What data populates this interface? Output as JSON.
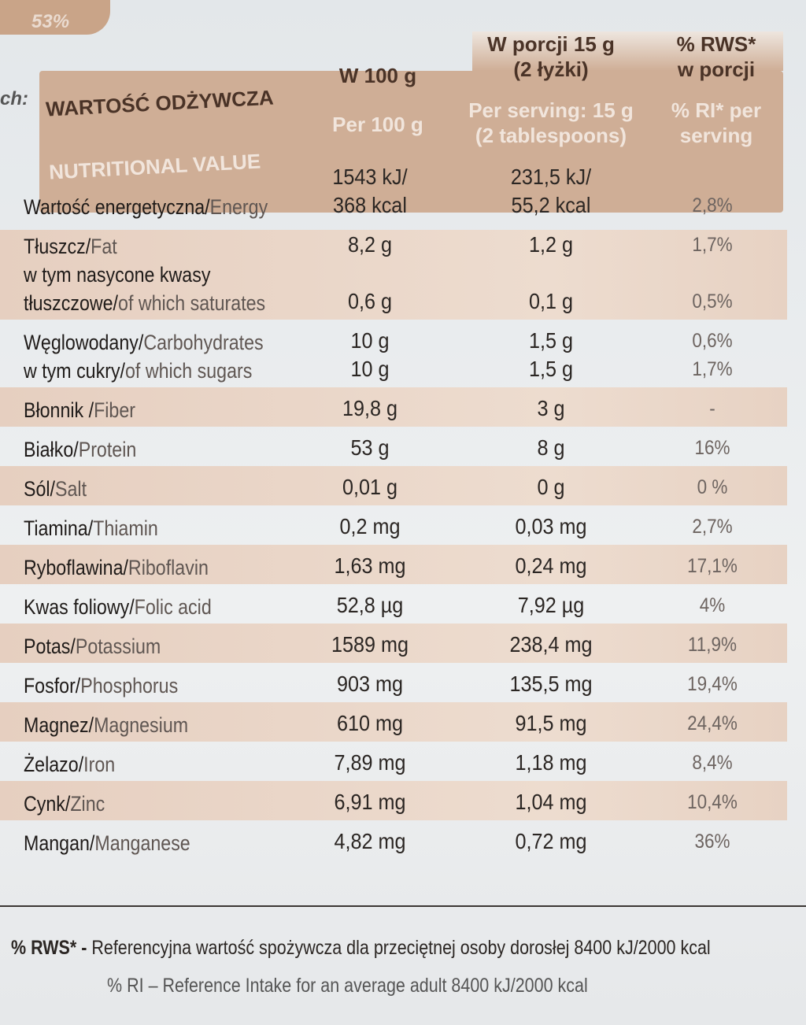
{
  "fragments": {
    "top": "53%",
    "left": "ch:"
  },
  "table": {
    "header": [
      {
        "pl": "WARTOŚĆ ODŻYWCZA",
        "en": "NUTRITIONAL VALUE"
      },
      {
        "pl": "W 100 g",
        "en": "Per 100 g"
      },
      {
        "pl": [
          "W porcji 15 g",
          "(2 łyżki)"
        ],
        "en": [
          "Per serving: 15 g",
          "(2 tablespoons)"
        ]
      },
      {
        "pl": [
          "% RWS*",
          "w porcji"
        ],
        "en": [
          "% RI* per",
          "serving"
        ]
      }
    ],
    "rows": [
      {
        "items": [
          {
            "pl": "Wartość energetyczna/",
            "en": "Energy",
            "per100": [
              "1543 kJ/",
              "368 kcal"
            ],
            "serving": [
              "231,5 kJ/",
              "55,2 kcal"
            ],
            "ri": "2,8%"
          }
        ]
      },
      {
        "items": [
          {
            "pl": "Tłuszcz/",
            "en": "Fat",
            "per100": "8,2 g",
            "serving": "1,2 g",
            "ri": "1,7%"
          },
          {
            "pl": "w tym nasycone kwasy"
          },
          {
            "pl": "tłuszczowe/",
            "en": "of which saturates",
            "per100": "0,6 g",
            "serving": "0,1 g",
            "ri": "0,5%"
          }
        ]
      },
      {
        "items": [
          {
            "pl": "Węglowodany/",
            "en": "Carbohydrates",
            "per100": "10 g",
            "serving": "1,5 g",
            "ri": "0,6%"
          },
          {
            "pl": "w tym cukry/",
            "en": "of which sugars",
            "per100": "10 g",
            "serving": "1,5 g",
            "ri": "1,7%"
          }
        ]
      },
      {
        "items": [
          {
            "pl": "Błonnik /",
            "en": "Fiber",
            "per100": "19,8 g",
            "serving": "3 g",
            "ri": "-"
          }
        ]
      },
      {
        "items": [
          {
            "pl": "Białko/",
            "en": "Protein",
            "per100": "53 g",
            "serving": "8 g",
            "ri": "16%"
          }
        ]
      },
      {
        "items": [
          {
            "pl": "Sól/",
            "en": "Salt",
            "per100": "0,01 g",
            "serving": "0 g",
            "ri": "0 %"
          }
        ]
      },
      {
        "items": [
          {
            "pl": "Tiamina/",
            "en": "Thiamin",
            "per100": "0,2 mg",
            "serving": "0,03 mg",
            "ri": "2,7%"
          }
        ]
      },
      {
        "items": [
          {
            "pl": "Ryboflawina/",
            "en": "Riboflavin",
            "per100": "1,63 mg",
            "serving": "0,24 mg",
            "ri": "17,1%"
          }
        ]
      },
      {
        "items": [
          {
            "pl": "Kwas foliowy/",
            "en": "Folic acid",
            "per100": "52,8 µg",
            "serving": "7,92 µg",
            "ri": "4%"
          }
        ]
      },
      {
        "items": [
          {
            "pl": "Potas/",
            "en": "Potassium",
            "per100": "1589 mg",
            "serving": "238,4 mg",
            "ri": "11,9%"
          }
        ]
      },
      {
        "items": [
          {
            "pl": "Fosfor/",
            "en": "Phosphorus",
            "per100": "903 mg",
            "serving": "135,5 mg",
            "ri": "19,4%"
          }
        ]
      },
      {
        "items": [
          {
            "pl": "Magnez/",
            "en": "Magnesium",
            "per100": "610 mg",
            "serving": "91,5 mg",
            "ri": "24,4%"
          }
        ]
      },
      {
        "items": [
          {
            "pl": "Żelazo/",
            "en": "Iron",
            "per100": "7,89 mg",
            "serving": "1,18 mg",
            "ri": "8,4%"
          }
        ]
      },
      {
        "items": [
          {
            "pl": "Cynk/",
            "en": "Zinc",
            "per100": "6,91 mg",
            "serving": "1,04 mg",
            "ri": "10,4%"
          }
        ]
      },
      {
        "items": [
          {
            "pl": "Mangan/",
            "en": "Manganese",
            "per100": "4,82 mg",
            "serving": "0,72 mg",
            "ri": "36%"
          }
        ]
      }
    ]
  },
  "footer": [
    {
      "bold": "% RWS* -",
      "text": "Referencyjna wartość spożywcza dla przeciętnej osoby dorosłej 8400 kJ/2000 kcal"
    },
    {
      "bold": "% RI –",
      "text": "Reference Intake for an average adult 8400 kJ/2000 kcal"
    }
  ]
}
